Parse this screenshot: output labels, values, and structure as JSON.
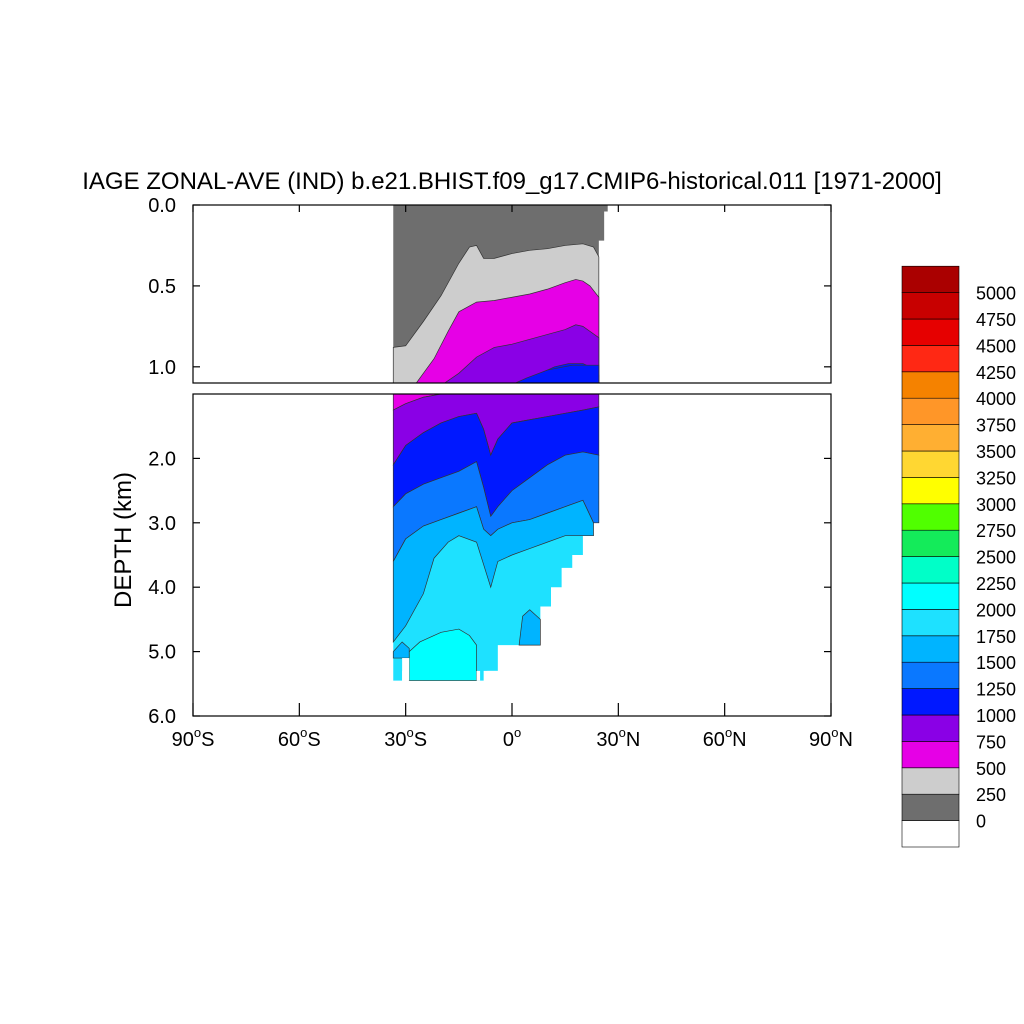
{
  "chart_data": {
    "type": "heatmap",
    "title": "IAGE ZONAL-AVE (IND) b.e21.BHIST.f09_g17.CMIP6-historical.011 [1971-2000]",
    "ylabel": "DEPTH (km)",
    "xlabel": "",
    "xlim": [
      -90,
      90
    ],
    "x_ticks": [
      {
        "value": -90,
        "label": "90",
        "hemi": "S"
      },
      {
        "value": -60,
        "label": "60",
        "hemi": "S"
      },
      {
        "value": -30,
        "label": "30",
        "hemi": "S"
      },
      {
        "value": 0,
        "label": "0",
        "hemi": ""
      },
      {
        "value": 30,
        "label": "30",
        "hemi": "N"
      },
      {
        "value": 60,
        "label": "60",
        "hemi": "N"
      },
      {
        "value": 90,
        "label": "90",
        "hemi": "N"
      }
    ],
    "upper_panel": {
      "ylim": [
        0,
        1.1
      ],
      "y_ticks": [
        {
          "value": 0,
          "label": "0.0"
        },
        {
          "value": 0.5,
          "label": "0.5"
        },
        {
          "value": 1.0,
          "label": "1.0"
        }
      ]
    },
    "lower_panel": {
      "ylim": [
        1.0,
        6.0
      ],
      "y_ticks": [
        {
          "value": 2,
          "label": "2.0"
        },
        {
          "value": 3,
          "label": "3.0"
        },
        {
          "value": 4,
          "label": "4.0"
        },
        {
          "value": 5,
          "label": "5.0"
        },
        {
          "value": 6,
          "label": "6.0"
        }
      ]
    },
    "colorbar": {
      "levels": [
        "0",
        "250",
        "500",
        "750",
        "1000",
        "1250",
        "1500",
        "1750",
        "2000",
        "2250",
        "2500",
        "2750",
        "3000",
        "3250",
        "3500",
        "3750",
        "4000",
        "4250",
        "4500",
        "4750",
        "5000"
      ],
      "colors": [
        "#ffffff",
        "#6e6e6e",
        "#cdcdcd",
        "#e600e6",
        "#8a00e6",
        "#0018ff",
        "#0a78ff",
        "#00b4ff",
        "#1ee1ff",
        "#00ffff",
        "#00ffc8",
        "#14eb5a",
        "#50ff00",
        "#ffff00",
        "#ffd732",
        "#ffaf32",
        "#ff9628",
        "#f58200",
        "#ff2814",
        "#e60000",
        "#c80000",
        "#aa0000"
      ]
    },
    "contour_bands": [
      {
        "level": "0-250",
        "color": "#6e6e6e",
        "boundary": [
          [
            -33.5,
            0.88
          ],
          [
            -30,
            0.87
          ],
          [
            -25,
            0.72
          ],
          [
            -20,
            0.56
          ],
          [
            -15,
            0.36
          ],
          [
            -12,
            0.26
          ],
          [
            -10,
            0.25
          ],
          [
            -8,
            0.33
          ],
          [
            -5,
            0.33
          ],
          [
            0,
            0.3
          ],
          [
            5,
            0.28
          ],
          [
            10,
            0.27
          ],
          [
            15,
            0.25
          ],
          [
            20,
            0.24
          ],
          [
            23,
            0.26
          ],
          [
            24.5,
            0.32
          ]
        ]
      },
      {
        "level": "250-500",
        "color": "#cdcdcd",
        "boundary": [
          [
            -33.5,
            1.1
          ],
          [
            -27,
            1.1
          ],
          [
            -22,
            0.95
          ],
          [
            -18,
            0.78
          ],
          [
            -15,
            0.66
          ],
          [
            -10,
            0.6
          ],
          [
            -5,
            0.59
          ],
          [
            0,
            0.57
          ],
          [
            5,
            0.55
          ],
          [
            10,
            0.52
          ],
          [
            15,
            0.48
          ],
          [
            18,
            0.46
          ],
          [
            20,
            0.47
          ],
          [
            22,
            0.5
          ],
          [
            24.5,
            0.57
          ]
        ]
      },
      {
        "level": "500-750",
        "color": "#e600e6",
        "boundary": [
          [
            -19,
            1.1
          ],
          [
            -15,
            1.04
          ],
          [
            -10,
            0.94
          ],
          [
            -5,
            0.88
          ],
          [
            0,
            0.86
          ],
          [
            5,
            0.83
          ],
          [
            10,
            0.8
          ],
          [
            15,
            0.77
          ],
          [
            18,
            0.74
          ],
          [
            20,
            0.75
          ],
          [
            24.5,
            0.82
          ]
        ]
      },
      {
        "level": "750-1000",
        "color": "#8a00e6",
        "boundary": [
          [
            3,
            1.1
          ],
          [
            8,
            1.04
          ],
          [
            12,
            1.0
          ],
          [
            16,
            0.98
          ],
          [
            20,
            0.98
          ],
          [
            22,
            1.0
          ],
          [
            24.5,
            1.05
          ]
        ]
      }
    ],
    "note_lower_bands": [
      "750-1000",
      "1000-1250",
      "1250-1500",
      "1500-1750",
      "1750-2000",
      "2000-2250"
    ]
  }
}
